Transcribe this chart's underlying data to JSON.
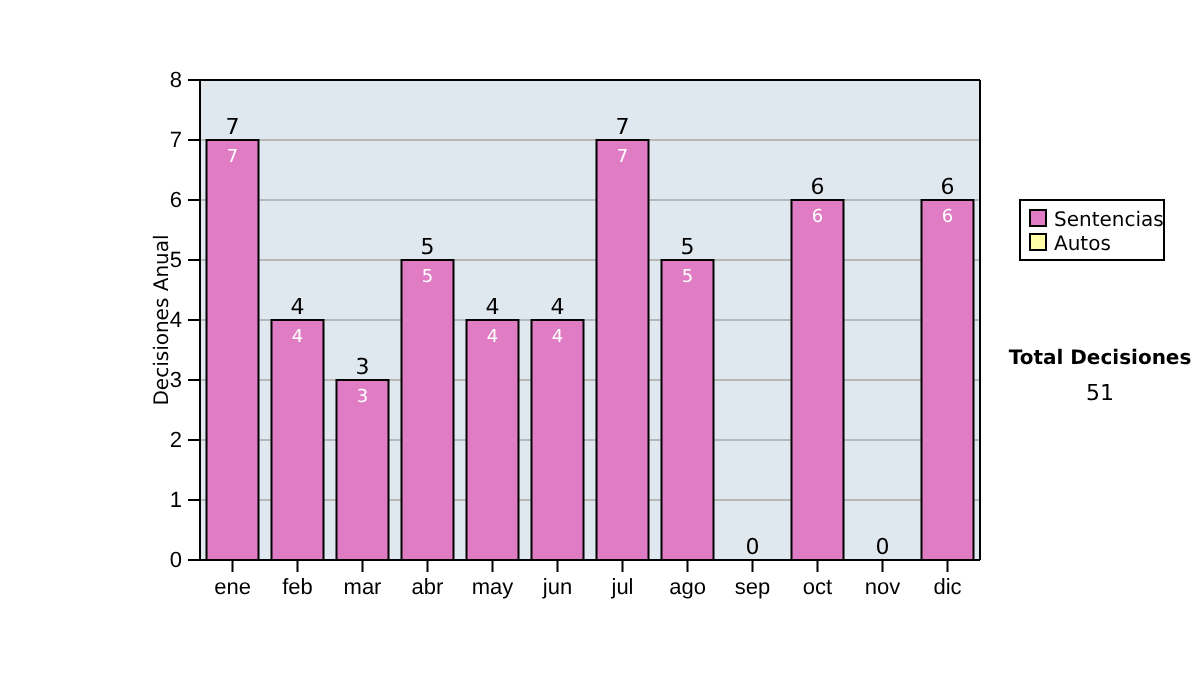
{
  "chart_data": {
    "type": "bar",
    "ylabel": "Decisiones Anual",
    "categories": [
      "ene",
      "feb",
      "mar",
      "abr",
      "may",
      "jun",
      "jul",
      "ago",
      "sep",
      "oct",
      "nov",
      "dic"
    ],
    "series": [
      {
        "name": "Sentencias",
        "color": "#e07cc4",
        "values": [
          7,
          4,
          3,
          5,
          4,
          4,
          7,
          5,
          0,
          6,
          0,
          6
        ],
        "value_labels": [
          "7",
          "4",
          "3",
          "5",
          "4",
          "4",
          "7",
          "5",
          null,
          "6",
          null,
          "6"
        ]
      },
      {
        "name": "Autos",
        "color": "#ffffa8",
        "values": [
          0,
          0,
          0,
          0,
          0,
          0,
          0,
          0,
          0,
          0,
          0,
          0
        ]
      }
    ],
    "stacked": true,
    "totals": [
      "7",
      "4",
      "3",
      "5",
      "4",
      "4",
      "7",
      "5",
      "0",
      "6",
      "0",
      "6"
    ],
    "ylim": [
      0,
      8
    ],
    "yticks": [
      0,
      1,
      2,
      3,
      4,
      5,
      6,
      7,
      8
    ],
    "grid": "y",
    "legend": "right",
    "annotations": [
      "Total Decisiones",
      "51"
    ]
  }
}
